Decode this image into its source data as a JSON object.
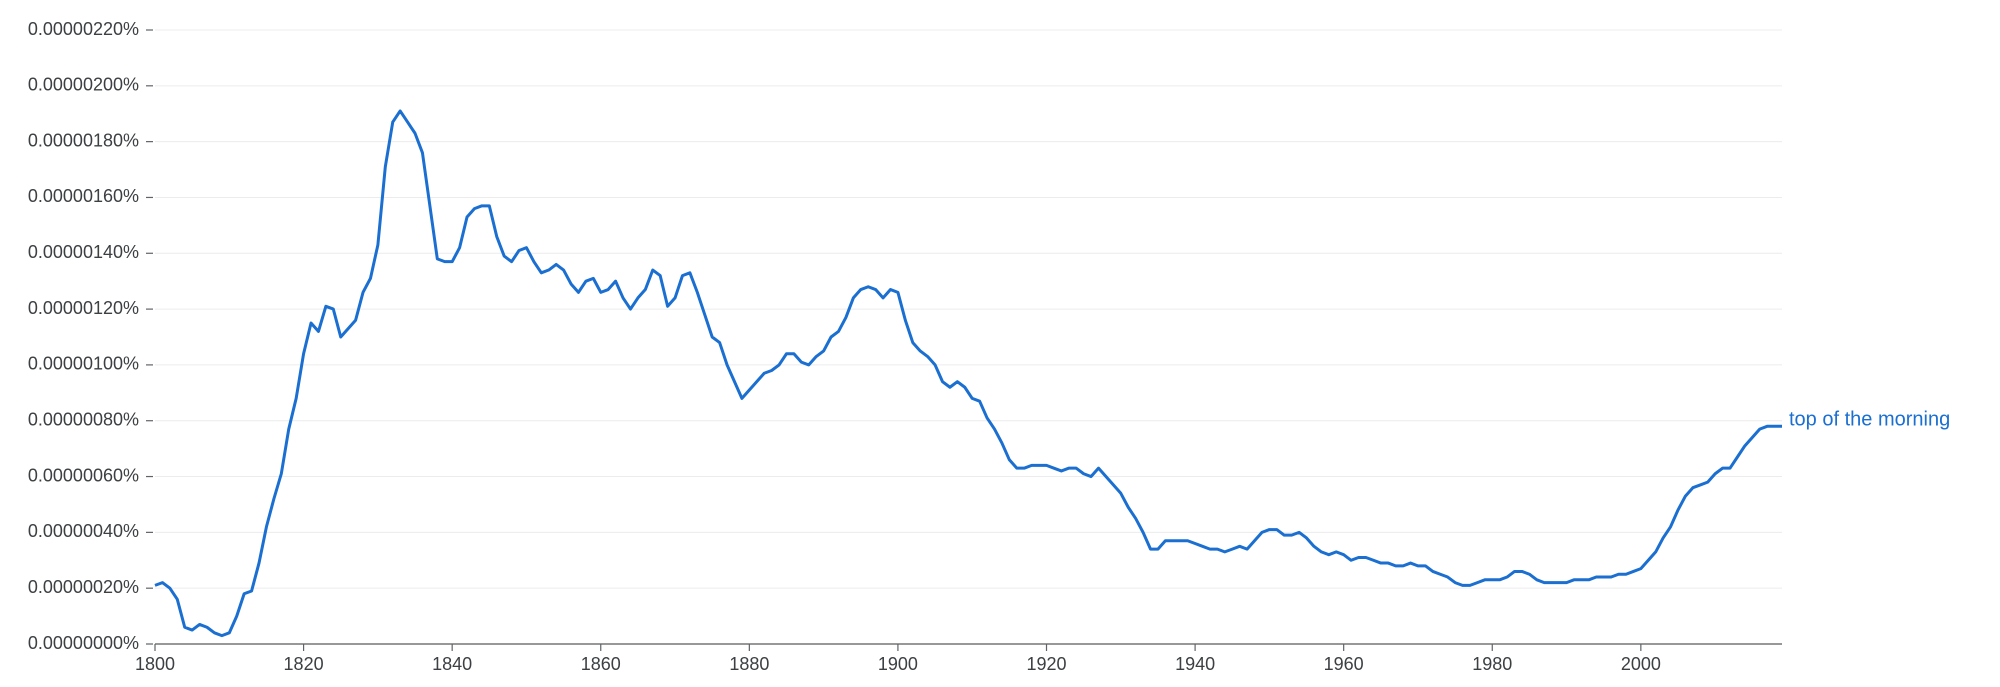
{
  "chart_data": {
    "type": "line",
    "x": [
      1800,
      1801,
      1802,
      1803,
      1804,
      1805,
      1806,
      1807,
      1808,
      1809,
      1810,
      1811,
      1812,
      1813,
      1814,
      1815,
      1816,
      1817,
      1818,
      1819,
      1820,
      1821,
      1822,
      1823,
      1824,
      1825,
      1826,
      1827,
      1828,
      1829,
      1830,
      1831,
      1832,
      1833,
      1834,
      1835,
      1836,
      1837,
      1838,
      1839,
      1840,
      1841,
      1842,
      1843,
      1844,
      1845,
      1846,
      1847,
      1848,
      1849,
      1850,
      1851,
      1852,
      1853,
      1854,
      1855,
      1856,
      1857,
      1858,
      1859,
      1860,
      1861,
      1862,
      1863,
      1864,
      1865,
      1866,
      1867,
      1868,
      1869,
      1870,
      1871,
      1872,
      1873,
      1874,
      1875,
      1876,
      1877,
      1878,
      1879,
      1880,
      1881,
      1882,
      1883,
      1884,
      1885,
      1886,
      1887,
      1888,
      1889,
      1890,
      1891,
      1892,
      1893,
      1894,
      1895,
      1896,
      1897,
      1898,
      1899,
      1900,
      1901,
      1902,
      1903,
      1904,
      1905,
      1906,
      1907,
      1908,
      1909,
      1910,
      1911,
      1912,
      1913,
      1914,
      1915,
      1916,
      1917,
      1918,
      1919,
      1920,
      1921,
      1922,
      1923,
      1924,
      1925,
      1926,
      1927,
      1928,
      1929,
      1930,
      1931,
      1932,
      1933,
      1934,
      1935,
      1936,
      1937,
      1938,
      1939,
      1940,
      1941,
      1942,
      1943,
      1944,
      1945,
      1946,
      1947,
      1948,
      1949,
      1950,
      1951,
      1952,
      1953,
      1954,
      1955,
      1956,
      1957,
      1958,
      1959,
      1960,
      1961,
      1962,
      1963,
      1964,
      1965,
      1966,
      1967,
      1968,
      1969,
      1970,
      1971,
      1972,
      1973,
      1974,
      1975,
      1976,
      1977,
      1978,
      1979,
      1980,
      1981,
      1982,
      1983,
      1984,
      1985,
      1986,
      1987,
      1988,
      1989,
      1990,
      1991,
      1992,
      1993,
      1994,
      1995,
      1996,
      1997,
      1998,
      1999,
      2000,
      2001,
      2002,
      2003,
      2004,
      2005,
      2006,
      2007,
      2008,
      2009,
      2010,
      2011,
      2012,
      2013,
      2014,
      2015,
      2016,
      2017,
      2018,
      2019
    ],
    "series": [
      {
        "name": "top of the morning",
        "color": "#1a6fd1",
        "values": [
          2.1e-07,
          2.2e-07,
          2e-07,
          1.6e-07,
          6e-08,
          5e-08,
          7e-08,
          6e-08,
          4e-08,
          3e-08,
          4e-08,
          1e-07,
          1.8e-07,
          1.9e-07,
          2.9e-07,
          4.2e-07,
          5.2e-07,
          6.1e-07,
          7.7e-07,
          8.8e-07,
          1.04e-06,
          1.15e-06,
          1.12e-06,
          1.21e-06,
          1.2e-06,
          1.1e-06,
          1.13e-06,
          1.16e-06,
          1.26e-06,
          1.31e-06,
          1.43e-06,
          1.71e-06,
          1.87e-06,
          1.91e-06,
          1.87e-06,
          1.83e-06,
          1.76e-06,
          1.57e-06,
          1.38e-06,
          1.37e-06,
          1.37e-06,
          1.42e-06,
          1.53e-06,
          1.56e-06,
          1.57e-06,
          1.57e-06,
          1.46e-06,
          1.39e-06,
          1.37e-06,
          1.41e-06,
          1.42e-06,
          1.37e-06,
          1.33e-06,
          1.34e-06,
          1.36e-06,
          1.34e-06,
          1.29e-06,
          1.26e-06,
          1.3e-06,
          1.31e-06,
          1.26e-06,
          1.27e-06,
          1.3e-06,
          1.24e-06,
          1.2e-06,
          1.24e-06,
          1.27e-06,
          1.34e-06,
          1.32e-06,
          1.21e-06,
          1.24e-06,
          1.32e-06,
          1.33e-06,
          1.26e-06,
          1.18e-06,
          1.1e-06,
          1.08e-06,
          1e-06,
          9.4e-07,
          8.8e-07,
          9.1e-07,
          9.4e-07,
          9.7e-07,
          9.8e-07,
          1e-06,
          1.04e-06,
          1.04e-06,
          1.01e-06,
          1e-06,
          1.03e-06,
          1.05e-06,
          1.1e-06,
          1.12e-06,
          1.17e-06,
          1.24e-06,
          1.27e-06,
          1.28e-06,
          1.27e-06,
          1.24e-06,
          1.27e-06,
          1.26e-06,
          1.16e-06,
          1.08e-06,
          1.05e-06,
          1.03e-06,
          1e-06,
          9.4e-07,
          9.2e-07,
          9.4e-07,
          9.2e-07,
          8.8e-07,
          8.7e-07,
          8.1e-07,
          7.7e-07,
          7.2e-07,
          6.6e-07,
          6.3e-07,
          6.3e-07,
          6.4e-07,
          6.4e-07,
          6.4e-07,
          6.3e-07,
          6.2e-07,
          6.3e-07,
          6.3e-07,
          6.1e-07,
          6e-07,
          6.3e-07,
          6e-07,
          5.7e-07,
          5.4e-07,
          4.9e-07,
          4.5e-07,
          4e-07,
          3.4e-07,
          3.4e-07,
          3.7e-07,
          3.7e-07,
          3.7e-07,
          3.7e-07,
          3.6e-07,
          3.5e-07,
          3.4e-07,
          3.4e-07,
          3.3e-07,
          3.4e-07,
          3.5e-07,
          3.4e-07,
          3.7e-07,
          4e-07,
          4.1e-07,
          4.1e-07,
          3.9e-07,
          3.9e-07,
          4e-07,
          3.8e-07,
          3.5e-07,
          3.3e-07,
          3.2e-07,
          3.3e-07,
          3.2e-07,
          3e-07,
          3.1e-07,
          3.1e-07,
          3e-07,
          2.9e-07,
          2.9e-07,
          2.8e-07,
          2.8e-07,
          2.9e-07,
          2.8e-07,
          2.8e-07,
          2.6e-07,
          2.5e-07,
          2.4e-07,
          2.2e-07,
          2.1e-07,
          2.1e-07,
          2.2e-07,
          2.3e-07,
          2.3e-07,
          2.3e-07,
          2.4e-07,
          2.6e-07,
          2.6e-07,
          2.5e-07,
          2.3e-07,
          2.2e-07,
          2.2e-07,
          2.2e-07,
          2.2e-07,
          2.3e-07,
          2.3e-07,
          2.3e-07,
          2.4e-07,
          2.4e-07,
          2.4e-07,
          2.5e-07,
          2.5e-07,
          2.6e-07,
          2.7e-07,
          3e-07,
          3.3e-07,
          3.8e-07,
          4.2e-07,
          4.8e-07,
          5.3e-07,
          5.6e-07,
          5.7e-07,
          5.8e-07,
          6.1e-07,
          6.3e-07,
          6.3e-07,
          6.7e-07,
          7.1e-07,
          7.4e-07,
          7.7e-07,
          7.8e-07,
          7.8e-07,
          7.8e-07
        ]
      }
    ],
    "xlim": [
      1800,
      2019
    ],
    "xticks": [
      1800,
      1820,
      1840,
      1860,
      1880,
      1900,
      1920,
      1940,
      1960,
      1980,
      2000
    ],
    "ylim": [
      0,
      2.2e-06
    ],
    "yticks": [
      {
        "value": 0,
        "label": "0.00000000%"
      },
      {
        "value": 2e-07,
        "label": "0.00000020%"
      },
      {
        "value": 4e-07,
        "label": "0.00000040%"
      },
      {
        "value": 6e-07,
        "label": "0.00000060%"
      },
      {
        "value": 8e-07,
        "label": "0.00000080%"
      },
      {
        "value": 1e-06,
        "label": "0.00000100%"
      },
      {
        "value": 1.2e-06,
        "label": "0.00000120%"
      },
      {
        "value": 1.4e-06,
        "label": "0.00000140%"
      },
      {
        "value": 1.6e-06,
        "label": "0.00000160%"
      },
      {
        "value": 1.8e-06,
        "label": "0.00000180%"
      },
      {
        "value": 2e-06,
        "label": "0.00000200%"
      },
      {
        "value": 2.2e-06,
        "label": "0.00000220%"
      }
    ],
    "grid": true
  }
}
